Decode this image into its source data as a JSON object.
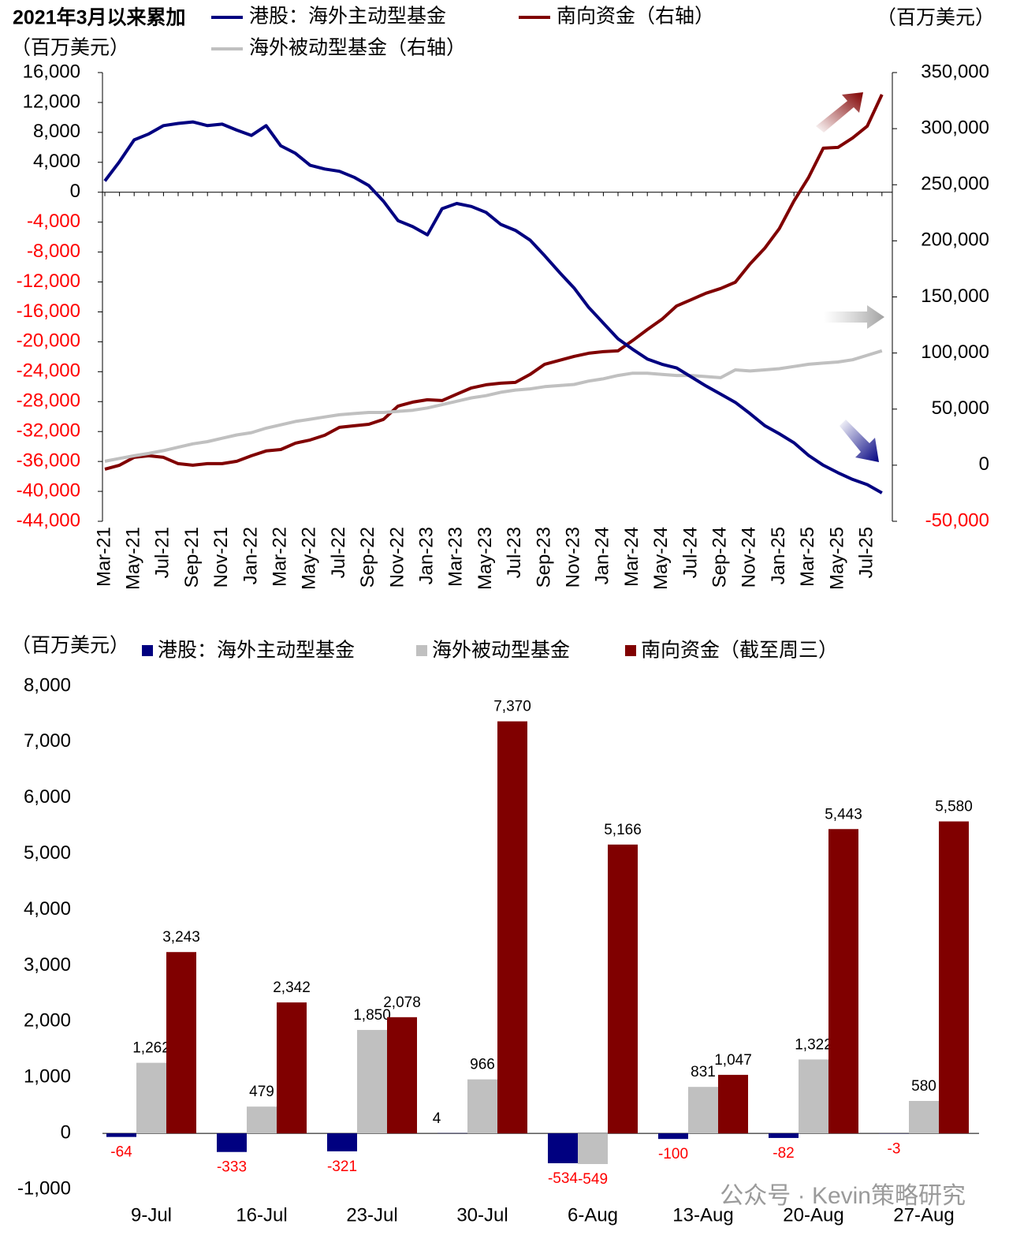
{
  "chart_data": [
    {
      "type": "line",
      "title": "2021年3月以来累加",
      "y_label": "（百万美元）",
      "y2_label": "（百万美元）",
      "categories": [
        "Mar-21",
        null,
        "May-21",
        null,
        "Jul-21",
        null,
        "Sep-21",
        null,
        "Nov-21",
        null,
        "Jan-22",
        null,
        "Mar-22",
        null,
        "May-22",
        null,
        "Jul-22",
        null,
        "Sep-22",
        null,
        "Nov-22",
        null,
        "Jan-23",
        null,
        "Mar-23",
        null,
        "May-23",
        null,
        "Jul-23",
        null,
        "Sep-23",
        null,
        "Nov-23",
        null,
        "Jan-24",
        null,
        "Mar-24",
        null,
        "May-24",
        null,
        "Jul-24",
        null,
        "Sep-24",
        null,
        "Nov-24",
        null,
        "Jan-25",
        null,
        "Mar-25",
        null,
        "May-25",
        null,
        "Jul-25",
        null
      ],
      "series": [
        {
          "name": "港股：海外主动型基金",
          "color": "#000080",
          "axis": "y",
          "values": [
            1500,
            4100,
            7000,
            7800,
            8900,
            9200,
            9400,
            8900,
            9100,
            8300,
            7600,
            8900,
            6200,
            5200,
            3600,
            3100,
            2800,
            2000,
            900,
            -1200,
            -3800,
            -4600,
            -5700,
            -2200,
            -1500,
            -1900,
            -2700,
            -4300,
            -5100,
            -6400,
            -8500,
            -10700,
            -12800,
            -15400,
            -17500,
            -19600,
            -21000,
            -22300,
            -23000,
            -23500,
            -24700,
            -25900,
            -27000,
            -28100,
            -29600,
            -31200,
            -32300,
            -33500,
            -35200,
            -36500,
            -37500,
            -38400,
            -39100,
            -40200
          ]
        },
        {
          "name": "南向资金（右轴）",
          "color": "#800000",
          "axis": "y2",
          "values": [
            -3500,
            0,
            7000,
            8400,
            7000,
            1400,
            0,
            1400,
            1400,
            3500,
            8400,
            12700,
            14000,
            19700,
            22500,
            26700,
            33700,
            35100,
            36500,
            40800,
            52700,
            56200,
            58300,
            57600,
            63300,
            68900,
            71700,
            73100,
            73800,
            80900,
            90000,
            93500,
            97000,
            99800,
            101200,
            101900,
            111100,
            120900,
            130100,
            142000,
            147600,
            153300,
            157500,
            163100,
            179300,
            193300,
            210900,
            235500,
            256600,
            282600,
            283300,
            291700,
            302300,
            330400
          ]
        },
        {
          "name": "海外被动型基金（右轴）",
          "color": "#c0c0c0",
          "axis": "y2",
          "values": [
            3500,
            6000,
            8400,
            10500,
            13000,
            16000,
            19000,
            21000,
            24000,
            27000,
            29000,
            33000,
            36000,
            39000,
            41000,
            43000,
            45000,
            46000,
            47000,
            47000,
            48000,
            49000,
            51000,
            54000,
            57000,
            60000,
            62000,
            65000,
            67000,
            68000,
            70000,
            71000,
            72000,
            75000,
            77000,
            80000,
            82000,
            82000,
            81000,
            80000,
            80000,
            79000,
            78000,
            85000,
            84000,
            85000,
            86000,
            88000,
            90000,
            91000,
            92000,
            94000,
            98000,
            102000
          ]
        }
      ],
      "ylim": [
        -44000,
        16000
      ],
      "yticks": [
        {
          "value": 16000,
          "label": "16,000"
        },
        {
          "value": 12000,
          "label": "12,000"
        },
        {
          "value": 8000,
          "label": "8,000"
        },
        {
          "value": 4000,
          "label": "4,000"
        },
        0,
        {
          "value": -4000,
          "label": "-4,000"
        },
        {
          "value": -8000,
          "label": "-8,000"
        },
        {
          "value": -12000,
          "label": "-12,000"
        },
        {
          "value": -16000,
          "label": "-16,000"
        },
        {
          "value": -20000,
          "label": "-20,000"
        },
        {
          "value": -24000,
          "label": "-24,000"
        },
        {
          "value": -28000,
          "label": "-28,000"
        },
        {
          "value": -32000,
          "label": "-32,000"
        },
        {
          "value": -36000,
          "label": "-36,000"
        },
        {
          "value": -40000,
          "label": "-40,000"
        },
        {
          "value": -44000,
          "label": "-44,000"
        }
      ],
      "y2lim": [
        -50000,
        350000
      ],
      "y2ticks": [
        {
          "value": 350000,
          "label": "350,000"
        },
        {
          "value": 300000,
          "label": "300,000"
        },
        {
          "value": 250000,
          "label": "250,000"
        },
        {
          "value": 200000,
          "label": "200,000"
        },
        {
          "value": 150000,
          "label": "150,000"
        },
        {
          "value": 100000,
          "label": "100,000"
        },
        {
          "value": 50000,
          "label": "50,000"
        },
        0,
        {
          "value": -50000,
          "label": "-50,000"
        }
      ],
      "negative_tick_color": "#ff0000",
      "grid": false
    },
    {
      "type": "bar",
      "y_label": "（百万美元）",
      "categories": [
        "9-Jul",
        "16-Jul",
        "23-Jul",
        "30-Jul",
        "6-Aug",
        "13-Aug",
        "20-Aug",
        "27-Aug"
      ],
      "series": [
        {
          "name": "港股：海外主动型基金",
          "color": "#000080",
          "values": [
            -64,
            -333,
            -321,
            4,
            -534,
            -100,
            -82,
            -3
          ],
          "value_labels": [
            "-64",
            "-333",
            "-321",
            "4",
            "-534",
            "-100",
            "-82",
            "-3"
          ]
        },
        {
          "name": "海外被动型基金",
          "color": "#c0c0c0",
          "values": [
            1262,
            479,
            1850,
            966,
            -549,
            831,
            1322,
            580
          ],
          "value_labels": [
            "1,262",
            "479",
            "1,850",
            "966",
            "-549",
            "831",
            "1,322",
            "580"
          ]
        },
        {
          "name": "南向资金（截至周三）",
          "color": "#800000",
          "values": [
            3243,
            2342,
            2078,
            7370,
            5166,
            1047,
            5443,
            5580
          ],
          "value_labels": [
            "3,243",
            "2,342",
            "2,078",
            "7,370",
            "5,166",
            "1,047",
            "5,443",
            "5,580"
          ]
        }
      ],
      "ylim": [
        -1000,
        8000
      ],
      "yticks": [
        {
          "value": 8000,
          "label": "8,000"
        },
        {
          "value": 7000,
          "label": "7,000"
        },
        {
          "value": 6000,
          "label": "6,000"
        },
        {
          "value": 5000,
          "label": "5,000"
        },
        {
          "value": 4000,
          "label": "4,000"
        },
        {
          "value": 3000,
          "label": "3,000"
        },
        {
          "value": 2000,
          "label": "2,000"
        },
        {
          "value": 1000,
          "label": "1,000"
        },
        0,
        {
          "value": -1000,
          "label": "-1,000"
        }
      ],
      "negative_label_color": "#ff0000",
      "grid": false,
      "watermark": "公众号 · Kevin策略研究"
    }
  ]
}
